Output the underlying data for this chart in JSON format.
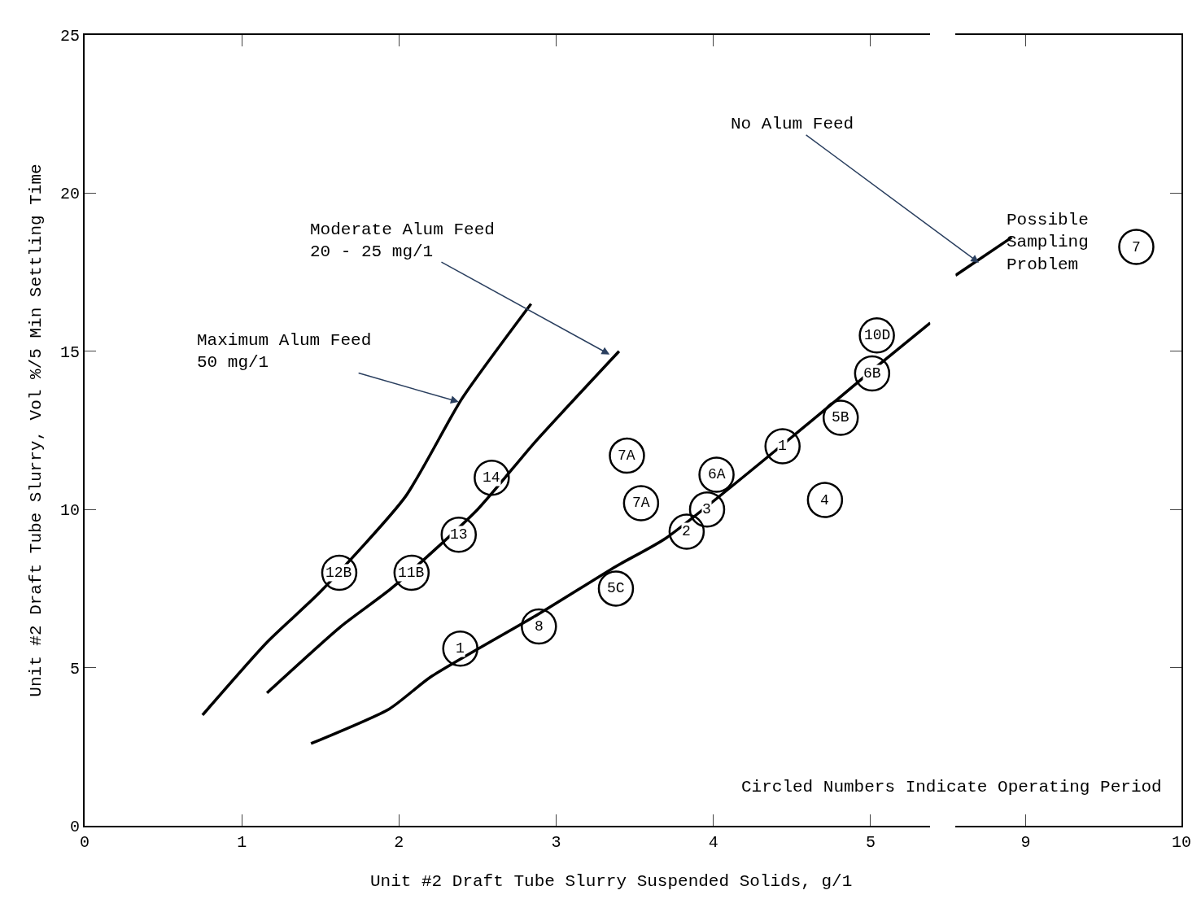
{
  "chart_data": [
    {
      "type": "scatter",
      "xlabel": "Unit #2 Draft Tube Slurry Suspended Solids, g/1",
      "ylabel": "Unit #2 Draft Tube Slurry, Vol %/5 Min Settling Time",
      "xlim": [
        0,
        5.38
      ],
      "xticks": [
        0,
        1,
        2,
        3,
        4,
        5
      ],
      "ylim": [
        0,
        25
      ],
      "yticks": [
        0,
        5,
        10,
        15,
        20,
        25
      ],
      "series": [
        {
          "type": "line",
          "color": "#000000",
          "marker": "none",
          "x": [
            0.75,
            1.16,
            1.5,
            2.04,
            2.4,
            2.84
          ],
          "values": [
            3.5,
            5.8,
            7.4,
            10.4,
            13.5,
            16.5
          ]
        },
        {
          "type": "line",
          "color": "#000000",
          "marker": "none",
          "x": [
            1.16,
            1.63,
            1.95,
            2.5,
            2.86,
            3.4
          ],
          "values": [
            4.2,
            6.3,
            7.5,
            10.0,
            12.1,
            15.0
          ]
        },
        {
          "type": "line",
          "color": "#000000",
          "marker": "none",
          "x": [
            1.44,
            1.94,
            2.2,
            2.89,
            3.38,
            3.7,
            4.6,
            5.01,
            5.38
          ],
          "values": [
            2.6,
            3.7,
            4.7,
            6.7,
            8.2,
            9.1,
            12.7,
            14.4,
            15.9
          ]
        },
        {
          "color": "#000000",
          "marker": "circle",
          "x": [
            1.62,
            2.08,
            2.38,
            2.59,
            2.39,
            2.89,
            3.38,
            3.45,
            3.54,
            3.83,
            3.96,
            4.02,
            4.44,
            4.71,
            4.81,
            5.01,
            5.04
          ],
          "values": [
            8.0,
            8.0,
            9.2,
            11.0,
            5.6,
            6.3,
            7.5,
            11.7,
            10.2,
            9.3,
            10.0,
            11.1,
            12.0,
            10.3,
            12.9,
            14.3,
            15.5
          ]
        }
      ],
      "annotations": [
        {
          "text": "Maximum Alum Feed\n50 mg/1",
          "x": 2.38,
          "y": 13.4
        },
        {
          "text": "Moderate Alum Feed\n20 - 25 mg/1",
          "x": 3.34,
          "y": 14.9
        },
        {
          "text": "12B",
          "x": 1.62,
          "y": 8.0
        },
        {
          "text": "11B",
          "x": 2.08,
          "y": 8.0
        },
        {
          "text": "13",
          "x": 2.38,
          "y": 9.2
        },
        {
          "text": "14",
          "x": 2.59,
          "y": 11.0
        },
        {
          "text": "1",
          "x": 2.39,
          "y": 5.6
        },
        {
          "text": "8",
          "x": 2.89,
          "y": 6.3
        },
        {
          "text": "5C",
          "x": 3.38,
          "y": 7.5
        },
        {
          "text": "7A",
          "x": 3.45,
          "y": 11.7
        },
        {
          "text": "7A",
          "x": 3.54,
          "y": 10.2
        },
        {
          "text": "2",
          "x": 3.83,
          "y": 9.3
        },
        {
          "text": "3",
          "x": 3.96,
          "y": 10.0
        },
        {
          "text": "6A",
          "x": 4.02,
          "y": 11.1
        },
        {
          "text": "1",
          "x": 4.44,
          "y": 12.0
        },
        {
          "text": "4",
          "x": 4.71,
          "y": 10.3
        },
        {
          "text": "5B",
          "x": 4.81,
          "y": 12.9
        },
        {
          "text": "6B",
          "x": 5.01,
          "y": 14.3
        },
        {
          "text": "10D",
          "x": 5.04,
          "y": 15.5
        }
      ]
    },
    {
      "type": "scatter",
      "xlim": [
        8.55,
        10
      ],
      "xticks": [
        9,
        10
      ],
      "ylim": [
        0,
        25
      ],
      "yticks": [
        0,
        5,
        10,
        15,
        20,
        25
      ],
      "tick_labels": "x",
      "series": [
        {
          "type": "line",
          "color": "#000000",
          "marker": "none",
          "x": [
            8.55,
            8.91
          ],
          "values": [
            17.4,
            18.6
          ]
        },
        {
          "color": "#000000",
          "marker": "circle",
          "x": [
            9.71
          ],
          "values": [
            18.3
          ]
        }
      ],
      "annotations": [
        {
          "text": "No Alum Feed",
          "x": 8.7,
          "y": 17.8
        },
        {
          "text": "7",
          "x": 9.71,
          "y": 18.3
        },
        "Possible\nSampling\nProblem",
        "Circled Numbers Indicate Operating Period"
      ]
    }
  ]
}
